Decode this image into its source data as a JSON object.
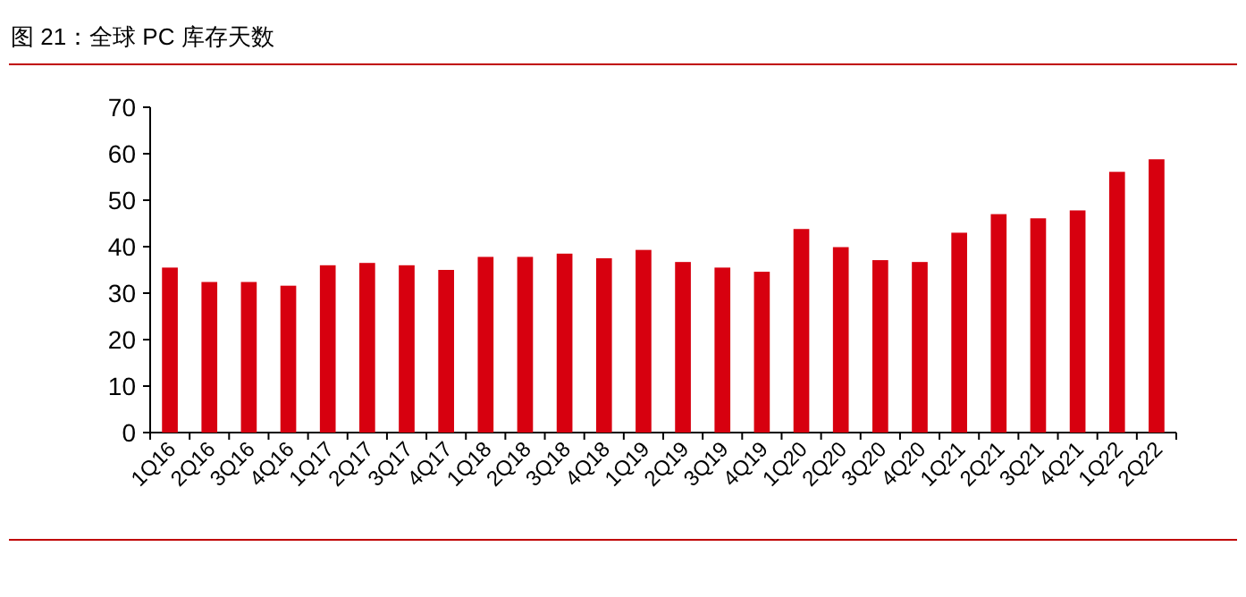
{
  "chart_data": {
    "type": "bar",
    "title": "图 21：全球 PC 库存天数",
    "categories": [
      "1Q16",
      "2Q16",
      "3Q16",
      "4Q16",
      "1Q17",
      "2Q17",
      "3Q17",
      "4Q17",
      "1Q18",
      "2Q18",
      "3Q18",
      "4Q18",
      "1Q19",
      "2Q19",
      "3Q19",
      "4Q19",
      "1Q20",
      "2Q20",
      "3Q20",
      "4Q20",
      "1Q21",
      "2Q21",
      "3Q21",
      "4Q21",
      "1Q22",
      "2Q22"
    ],
    "values": [
      35.5,
      32.4,
      32.4,
      31.6,
      36.0,
      36.5,
      36.0,
      35.0,
      37.8,
      37.8,
      38.5,
      37.5,
      39.3,
      36.7,
      35.5,
      34.6,
      43.8,
      39.9,
      37.1,
      36.7,
      43.0,
      47.0,
      46.1,
      47.8,
      56.1,
      58.8
    ],
    "color": "#d7000f",
    "ylim": [
      0,
      70
    ],
    "yticks": [
      0,
      10,
      20,
      30,
      40,
      50,
      60,
      70
    ]
  }
}
